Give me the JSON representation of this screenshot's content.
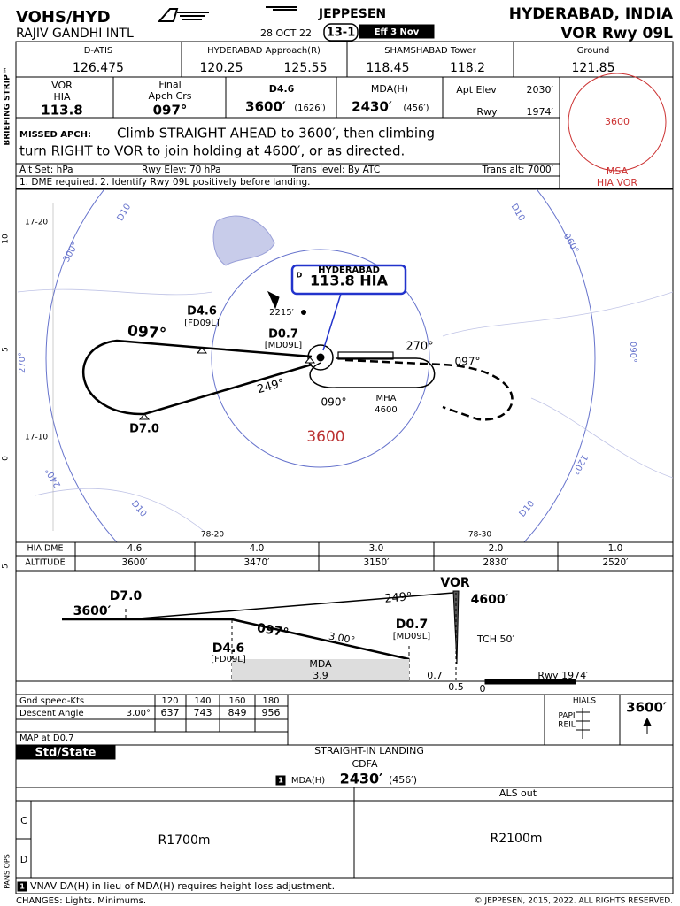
{
  "header": {
    "ident": "VOHS/HYD",
    "airport": "RAJIV GANDHI INTL",
    "brand": "JEPPESEN",
    "date": "28 OCT 22",
    "chart_number": "13-1",
    "effective": "Eff 3 Nov",
    "location": "HYDERABAD, INDIA",
    "procedure": "VOR Rwy 09L"
  },
  "side_label": "BRIEFING STRIP™",
  "communications": [
    {
      "label": "D-ATIS",
      "frequencies": [
        "126.475"
      ]
    },
    {
      "label": "HYDERABAD Approach(R)",
      "frequencies": [
        "120.25",
        "125.55"
      ]
    },
    {
      "label": "SHAMSHABAD Tower",
      "frequencies": [
        "118.45",
        "118.2"
      ]
    },
    {
      "label": "Ground",
      "frequencies": [
        "121.85"
      ]
    }
  ],
  "briefing": {
    "navaid_type": "VOR",
    "navaid_id": "HIA",
    "navaid_freq": "113.8",
    "final_label": [
      "Final",
      "Apch Crs"
    ],
    "final_course": "097°",
    "fix": "D4.6",
    "fix_altitude": "3600′",
    "fix_height": "(1626′)",
    "mda_label": "MDA(H)",
    "mda": "2430′",
    "mda_height": "(456′)",
    "apt_elev_label": "Apt Elev",
    "apt_elev": "2030′",
    "rwy_label": "Rwy",
    "rwy_elev": "1974′"
  },
  "missed_approach": {
    "label": "MISSED APCH:",
    "text": [
      "Climb STRAIGHT AHEAD to 3600′, then climbing",
      "turn RIGHT to VOR to join holding at 4600′, or as directed."
    ]
  },
  "altimetry": [
    "Alt Set: hPa",
    "Rwy Elev: 70 hPa",
    "Trans level: By ATC",
    "Trans alt: 7000′"
  ],
  "notes": "1. DME required.  2. Identify Rwy 09L positively before landing.",
  "msa": {
    "altitude": "3600",
    "label": "MSA",
    "navaid": "HIA VOR"
  },
  "plan_view": {
    "coordinates": [
      "17-20",
      "17-10",
      "78-20",
      "78-30"
    ],
    "scale": [
      "10",
      "5",
      "0",
      "5"
    ],
    "dme_arcs": [
      "D10",
      "D10",
      "D10",
      "D10"
    ],
    "radials": [
      "300°",
      "270°",
      "240°",
      "060°",
      "090°",
      "120°"
    ],
    "navaid_box": {
      "title": "HYDERABAD",
      "prefix": "D",
      "frequency": "113.8 HIA"
    },
    "fixes": [
      {
        "name": "D4.6",
        "id": "[FD09L]"
      },
      {
        "name": "D0.7",
        "id": "[MD09L]"
      },
      {
        "name": "D7.0"
      }
    ],
    "courses": [
      "097°",
      "249°",
      "270°",
      "097°",
      "090°"
    ],
    "spot_elevation": "2215′",
    "mha_label": "MHA",
    "mha": "4600",
    "sector_altitude": "3600"
  },
  "dme_table": {
    "headers": [
      "HIA DME",
      "ALTITUDE"
    ],
    "dme": [
      "4.6",
      "4.0",
      "3.0",
      "2.0",
      "1.0"
    ],
    "altitude": [
      "3600′",
      "3470′",
      "3150′",
      "2830′",
      "2520′"
    ]
  },
  "profile": {
    "fix_far": "D7.0",
    "altitude_far": "3600′",
    "missed_course": "249°",
    "navaid": "VOR",
    "hold_altitude": "4600′",
    "map_fix": "D0.7",
    "map_id": "[MD09L]",
    "final_course": "097°",
    "glide_angle": "3.00°",
    "faf": "D4.6",
    "faf_id": "[FD09L]",
    "mda_label": "MDA",
    "mda_distance": "3.9",
    "tch": "TCH 50′",
    "dist_map": "0.7",
    "dist_vor": "0.5",
    "dist_thr": "0",
    "runway": "Rwy 1974′"
  },
  "descent_table": {
    "speed_label": "Gnd speed-Kts",
    "speeds": [
      120,
      140,
      160,
      180
    ],
    "angle_label": "Descent Angle",
    "angle": "3.00°",
    "rates": [
      637,
      743,
      849,
      956
    ],
    "map_label": "MAP at D0.7"
  },
  "lighting": {
    "hials": "HIALS",
    "papi": "PAPI",
    "reil": "REIL",
    "altitude": "3600′"
  },
  "minimums": {
    "title": "Std/State",
    "landing": "STRAIGHT-IN LANDING",
    "cdfa": "CDFA",
    "note_ref": "1",
    "mda_label": "MDA(H)",
    "mda": "2430′",
    "mda_height": "(456′)",
    "column": "ALS out",
    "categories": [
      "C",
      "D"
    ],
    "visibility": [
      "R1700m",
      "R2100m"
    ],
    "rules": "PANS OPS",
    "note": "VNAV DA(H) in lieu of MDA(H) requires height loss adjustment."
  },
  "footer": {
    "changes": "CHANGES: Lights. Minimums.",
    "copyright": "© JEPPESEN, 2015, 2022. ALL RIGHTS RESERVED."
  }
}
